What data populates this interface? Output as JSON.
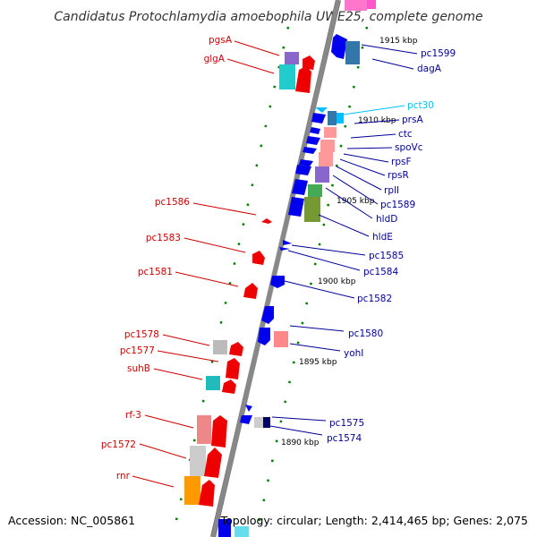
{
  "title": "Candidatus Protochlamydia amoebophila UWE25, complete genome",
  "footer": {
    "accession": "Accession: NC_005861",
    "topology": "Topology: circular; Length: 2,414,465 bp; Genes: 2,075"
  },
  "ticks": [
    "1915 kbp",
    "1910 kbp",
    "1905 kbp",
    "1900 kbp",
    "1895 kbp",
    "1890 kbp"
  ],
  "genes_left": [
    "pgsA",
    "glgA",
    "pc1586",
    "pc1583",
    "pc1581",
    "pc1578",
    "pc1577",
    "suhB",
    "rf-3",
    "pc1572",
    "rnr"
  ],
  "genes_right": [
    "pc1599",
    "dagA",
    "pct30",
    "prsA",
    "ctc",
    "spoVc",
    "rpsF",
    "rpsR",
    "rplI",
    "pc1589",
    "hldD",
    "hldE",
    "pc1585",
    "pc1584",
    "pc1582",
    "pc1580",
    "yohI",
    "pc1575",
    "pc1574"
  ],
  "colors": {
    "forward_strand": "#ff0000",
    "reverse_strand": "#0000ff",
    "left_label": "#cc0000",
    "right_label": "#000099",
    "highlight_label": "#00bfff",
    "backbone": "#888888",
    "dot": "#008000"
  }
}
